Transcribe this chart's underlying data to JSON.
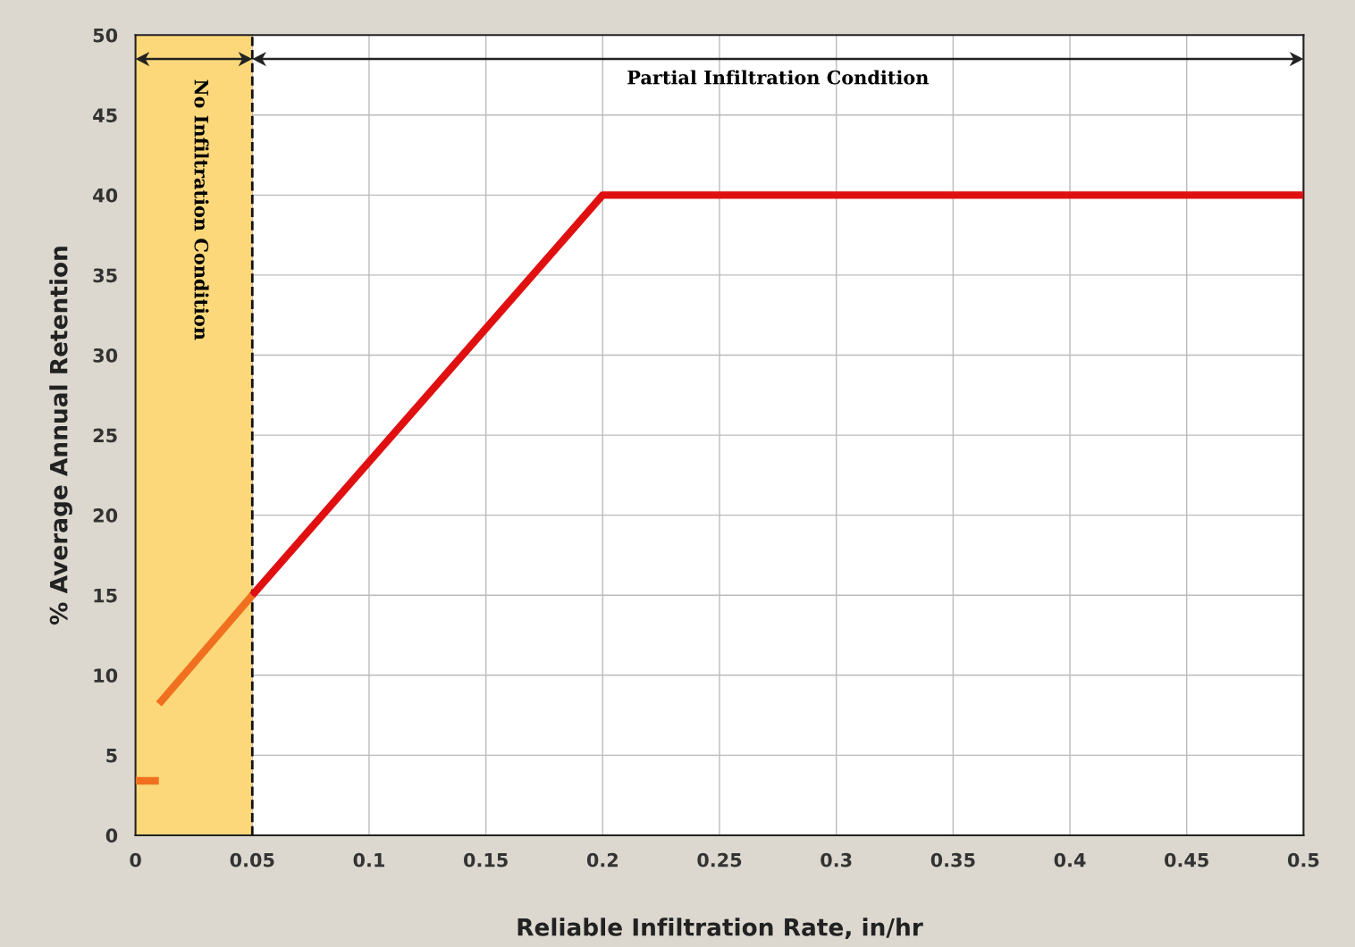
{
  "chart_data": {
    "type": "line",
    "xlabel": "Reliable Infiltration Rate, in/hr",
    "ylabel": "% Average Annual Retention",
    "series": [
      {
        "color": "#f07020",
        "x": [
          0,
          0.01
        ],
        "values": [
          3.4,
          3.4
        ]
      },
      {
        "color": "#f07020",
        "x": [
          0.01,
          0.05
        ],
        "values": [
          8.2,
          15
        ]
      },
      {
        "color": "#e01010",
        "x": [
          0.05,
          0.2,
          0.5
        ],
        "values": [
          15,
          40,
          40
        ]
      }
    ],
    "xlim": [
      0,
      0.5
    ],
    "xticks": [
      0,
      0.05,
      0.1,
      0.15,
      0.2,
      0.25,
      0.3,
      0.35,
      0.4,
      0.45,
      0.5
    ],
    "ylim": [
      0,
      50
    ],
    "yticks": [
      0,
      5,
      10,
      15,
      20,
      25,
      30,
      35,
      40,
      45,
      50
    ],
    "bands": [
      {
        "axis": "x",
        "from": 0,
        "to": 0.05,
        "label": "No Infiltration Condition",
        "color": "#fcd87a"
      }
    ],
    "ref_lines": [
      {
        "axis": "x",
        "value": 0.05,
        "label": "Partial Infiltration Condition",
        "line_style": "dashed",
        "color": "#111111"
      }
    ],
    "grid": true,
    "line_style": "solid",
    "marker": "none",
    "legend": false
  }
}
